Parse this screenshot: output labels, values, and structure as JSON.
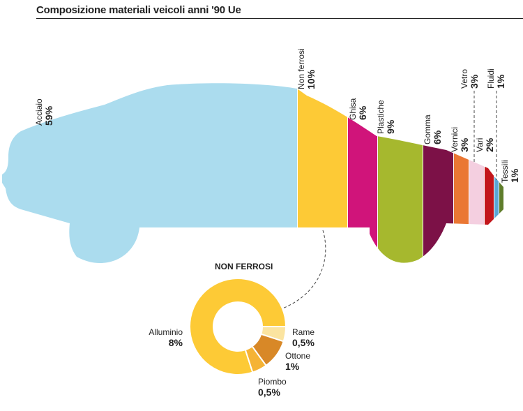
{
  "title": "Composizione materiali veicoli anni '90 Ue",
  "colors": {
    "acciaio": "#abdcee",
    "non_ferrosi": "#fdca36",
    "ghisa": "#d0147a",
    "plastiche": "#a6b82e",
    "gomma": "#7c1147",
    "vernici": "#ea7734",
    "vari": "#f4cfe0",
    "vetro": "#c3161b",
    "fluidi": "#5aa6d6",
    "tessili": "#5f7d2b",
    "rame": "#fbe4a0",
    "ottone": "#d88827",
    "piombo": "#f5b335",
    "alluminio": "#fdca36"
  },
  "chart_data": [
    {
      "type": "bar",
      "categories": [
        "Acciaio",
        "Non ferrosi",
        "Ghisa",
        "Plastiche",
        "Gomma",
        "Vernici",
        "Vari",
        "Vetro",
        "Fluidi",
        "Tessili"
      ],
      "values": [
        59,
        10,
        6,
        9,
        6,
        3,
        2,
        3,
        1,
        1
      ],
      "labels": [
        "59%",
        "10%",
        "6%",
        "9%",
        "6%",
        "3%",
        "2%",
        "3%",
        "1%",
        "1%"
      ],
      "unit": "%"
    },
    {
      "type": "pie",
      "donut": true,
      "title": "NON FERROSI",
      "categories": [
        "Alluminio",
        "Rame",
        "Ottone",
        "Piombo"
      ],
      "values": [
        8,
        0.5,
        1,
        0.5
      ],
      "labels": [
        "8%",
        "0,5%",
        "1%",
        "0,5%"
      ],
      "unit": "%"
    }
  ]
}
